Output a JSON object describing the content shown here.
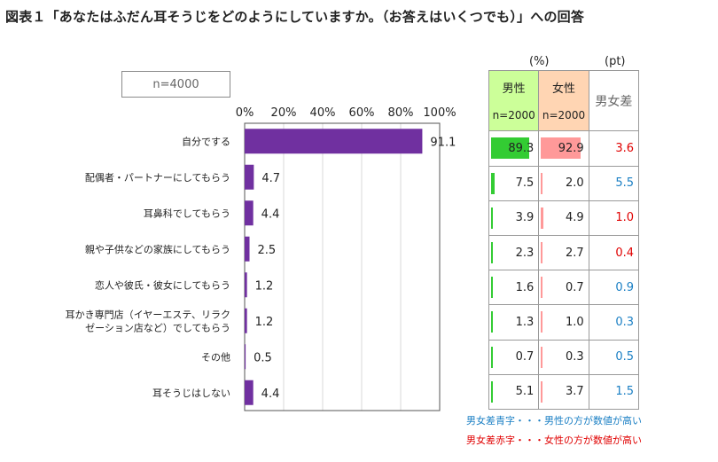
{
  "title": "図表１「あなたはふだん耳そうじをどのようにしていますか。（お答えはいくつでも）」への回答",
  "sample_label": "n=4000",
  "units": {
    "percent": "(%)",
    "pt": "(pt)"
  },
  "table_header": {
    "male": "男性",
    "male_n": "n=2000",
    "female": "女性",
    "female_n": "n=2000",
    "diff": "男女差"
  },
  "legend_notes": {
    "blue": "男女差青字・・・男性の方が数値が高い",
    "red": "男女差赤字・・・女性の方が数値が高い"
  },
  "colors": {
    "bar": "#7030a0",
    "male_bar": "#33cc33",
    "female_bar": "#ff9999",
    "diff_female_higher": "#e00000",
    "diff_male_higher": "#1a7fc4"
  },
  "chart_data": {
    "type": "bar",
    "orientation": "horizontal",
    "title": "",
    "categories": [
      "自分でする",
      "配偶者・パートナーにしてもらう",
      "耳鼻科でしてもらう",
      "親や子供などの家族にしてもらう",
      "恋人や彼氏・彼女にしてもらう",
      "耳かき専門店（イヤーエステ、リラクゼーション店など）でしてもらう",
      "その他",
      "耳そうじはしない"
    ],
    "category_lines": [
      [
        "自分でする"
      ],
      [
        "配偶者・パートナーにしてもらう"
      ],
      [
        "耳鼻科でしてもらう"
      ],
      [
        "親や子供などの家族にしてもらう"
      ],
      [
        "恋人や彼氏・彼女にしてもらう"
      ],
      [
        "耳かき専門店（イヤーエステ、リラク",
        "ゼーション店など）でしてもらう"
      ],
      [
        "その他"
      ],
      [
        "耳そうじはしない"
      ]
    ],
    "values": [
      91.1,
      4.7,
      4.4,
      2.5,
      1.2,
      1.2,
      0.5,
      4.4
    ],
    "value_labels": [
      "91.1",
      "4.7",
      "4.4",
      "2.5",
      "1.2",
      "1.2",
      "0.5",
      "4.4"
    ],
    "xlim": [
      0,
      100
    ],
    "xticks": [
      "0%",
      "20%",
      "40%",
      "60%",
      "80%",
      "100%"
    ],
    "xtick_values": [
      0,
      20,
      40,
      60,
      80,
      100
    ],
    "grid": true,
    "male": [
      89.3,
      7.5,
      3.9,
      2.3,
      1.6,
      1.3,
      0.7,
      5.1
    ],
    "male_labels": [
      "89.3",
      "7.5",
      "3.9",
      "2.3",
      "1.6",
      "1.3",
      "0.7",
      "5.1"
    ],
    "female": [
      92.9,
      2.0,
      4.9,
      2.7,
      0.7,
      1.0,
      0.3,
      3.7
    ],
    "female_labels": [
      "92.9",
      "2.0",
      "4.9",
      "2.7",
      "0.7",
      "1.0",
      "0.3",
      "3.7"
    ],
    "diff_labels": [
      "3.6",
      "5.5",
      "1.0",
      "0.4",
      "0.9",
      "0.3",
      "0.5",
      "1.5"
    ],
    "diff_higher": [
      "female",
      "male",
      "female",
      "female",
      "male",
      "male",
      "male",
      "male"
    ]
  }
}
